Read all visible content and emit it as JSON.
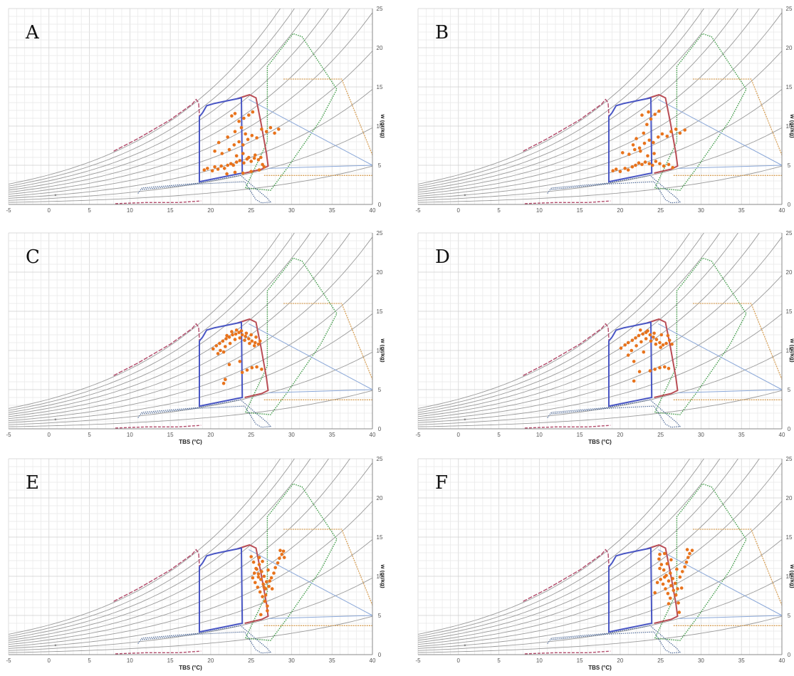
{
  "chart_data": [
    {
      "panel": "A",
      "type": "scatter",
      "xlabel": "",
      "ylabel": "w (gr/kg)",
      "xlim": [
        -5,
        40
      ],
      "ylim": [
        0,
        25
      ],
      "xticks": [
        "-5",
        "0",
        "5",
        "10",
        "15",
        "20",
        "25",
        "30",
        "35",
        "40"
      ],
      "yticks": [
        "0",
        "5",
        "10",
        "15",
        "20",
        "25"
      ],
      "points": [
        [
          19.2,
          4.4
        ],
        [
          19.6,
          4.6
        ],
        [
          20.2,
          4.3
        ],
        [
          20.5,
          4.8
        ],
        [
          20.9,
          4.5
        ],
        [
          21.3,
          4.9
        ],
        [
          21.7,
          4.6
        ],
        [
          22.1,
          5.0
        ],
        [
          22.5,
          5.2
        ],
        [
          22.8,
          5.0
        ],
        [
          23.2,
          5.4
        ],
        [
          23.6,
          5.6
        ],
        [
          24.1,
          5.3
        ],
        [
          24.5,
          5.8
        ],
        [
          25.0,
          5.5
        ],
        [
          25.4,
          5.9
        ],
        [
          25.9,
          5.7
        ],
        [
          26.4,
          5.1
        ],
        [
          20.5,
          6.8
        ],
        [
          21.4,
          6.5
        ],
        [
          22.3,
          7.0
        ],
        [
          22.9,
          7.6
        ],
        [
          23.5,
          8.0
        ],
        [
          24.0,
          7.6
        ],
        [
          24.6,
          8.3
        ],
        [
          25.1,
          8.8
        ],
        [
          25.7,
          8.5
        ],
        [
          24.3,
          9.0
        ],
        [
          21.0,
          7.9
        ],
        [
          22.1,
          8.6
        ],
        [
          23.0,
          9.3
        ],
        [
          23.8,
          9.8
        ],
        [
          23.5,
          10.6
        ],
        [
          24.1,
          11.0
        ],
        [
          24.7,
          11.4
        ],
        [
          25.2,
          11.8
        ],
        [
          22.6,
          11.3
        ],
        [
          23.0,
          11.6
        ],
        [
          26.3,
          9.6
        ],
        [
          26.9,
          9.3
        ],
        [
          27.4,
          9.8
        ],
        [
          27.9,
          9.1
        ],
        [
          28.4,
          9.6
        ],
        [
          23.2,
          6.2
        ],
        [
          24.0,
          6.5
        ],
        [
          24.7,
          6.0
        ],
        [
          25.5,
          6.3
        ],
        [
          26.2,
          6.0
        ],
        [
          22.0,
          3.9
        ],
        [
          23.0,
          4.1
        ],
        [
          24.0,
          4.0
        ],
        [
          25.0,
          4.2
        ],
        [
          26.0,
          4.4
        ],
        [
          26.6,
          4.8
        ]
      ]
    },
    {
      "panel": "B",
      "type": "scatter",
      "xlabel": "",
      "ylabel": "w (gr/kg)",
      "xlim": [
        -5,
        40
      ],
      "ylim": [
        0,
        25
      ],
      "xticks": [
        "-5",
        "0",
        "5",
        "10",
        "15",
        "20",
        "25",
        "30",
        "35",
        "40"
      ],
      "yticks": [
        "0",
        "5",
        "10",
        "15",
        "20",
        "25"
      ],
      "points": [
        [
          19.1,
          4.3
        ],
        [
          19.5,
          4.5
        ],
        [
          20.0,
          4.2
        ],
        [
          20.6,
          4.6
        ],
        [
          21.0,
          4.4
        ],
        [
          21.5,
          4.8
        ],
        [
          21.9,
          5.0
        ],
        [
          22.3,
          5.3
        ],
        [
          22.7,
          5.1
        ],
        [
          23.1,
          5.4
        ],
        [
          23.6,
          5.2
        ],
        [
          24.0,
          5.0
        ],
        [
          24.4,
          5.5
        ],
        [
          24.9,
          5.2
        ],
        [
          25.4,
          4.9
        ],
        [
          26.0,
          5.1
        ],
        [
          26.5,
          4.7
        ],
        [
          20.3,
          6.6
        ],
        [
          21.1,
          6.4
        ],
        [
          21.8,
          7.0
        ],
        [
          22.4,
          7.2
        ],
        [
          23.0,
          7.8
        ],
        [
          23.6,
          8.2
        ],
        [
          24.1,
          7.9
        ],
        [
          24.7,
          8.6
        ],
        [
          25.2,
          9.0
        ],
        [
          25.8,
          8.7
        ],
        [
          26.3,
          9.3
        ],
        [
          26.9,
          9.6
        ],
        [
          27.4,
          9.1
        ],
        [
          28.0,
          9.5
        ],
        [
          22.0,
          8.4
        ],
        [
          22.9,
          9.1
        ],
        [
          23.3,
          10.2
        ],
        [
          23.8,
          10.9
        ],
        [
          24.3,
          11.5
        ],
        [
          24.8,
          11.9
        ],
        [
          22.7,
          11.4
        ],
        [
          23.5,
          11.8
        ],
        [
          21.6,
          7.6
        ],
        [
          22.5,
          6.8
        ],
        [
          23.4,
          6.2
        ],
        [
          24.2,
          6.5
        ]
      ]
    },
    {
      "panel": "C",
      "type": "scatter",
      "xlabel": "TBS (°C)",
      "ylabel": "w (gr/kg)",
      "xlim": [
        -5,
        40
      ],
      "ylim": [
        0,
        25
      ],
      "xticks": [
        "-5",
        "0",
        "5",
        "10",
        "15",
        "20",
        "25",
        "30",
        "35",
        "40"
      ],
      "yticks": [
        "0",
        "5",
        "10",
        "15",
        "20",
        "25"
      ],
      "points": [
        [
          20.3,
          10.2
        ],
        [
          20.7,
          10.6
        ],
        [
          21.1,
          10.9
        ],
        [
          21.5,
          11.2
        ],
        [
          21.9,
          11.5
        ],
        [
          22.3,
          11.7
        ],
        [
          22.7,
          12.0
        ],
        [
          23.1,
          12.1
        ],
        [
          23.5,
          12.3
        ],
        [
          23.9,
          12.0
        ],
        [
          24.3,
          11.8
        ],
        [
          24.7,
          11.5
        ],
        [
          25.1,
          11.2
        ],
        [
          25.5,
          11.0
        ],
        [
          25.9,
          10.8
        ],
        [
          21.2,
          10.0
        ],
        [
          21.8,
          10.5
        ],
        [
          22.4,
          10.9
        ],
        [
          23.0,
          11.4
        ],
        [
          23.6,
          11.6
        ],
        [
          24.2,
          11.3
        ],
        [
          24.8,
          10.9
        ],
        [
          25.4,
          10.6
        ],
        [
          22.0,
          11.9
        ],
        [
          22.6,
          12.4
        ],
        [
          23.2,
          12.6
        ],
        [
          23.8,
          12.5
        ],
        [
          24.4,
          12.2
        ],
        [
          25.0,
          12.0
        ],
        [
          25.6,
          11.7
        ],
        [
          26.1,
          11.2
        ],
        [
          20.9,
          9.6
        ],
        [
          21.6,
          9.8
        ],
        [
          22.3,
          8.2
        ],
        [
          21.8,
          6.3
        ],
        [
          21.6,
          5.8
        ],
        [
          23.9,
          7.2
        ],
        [
          24.5,
          7.5
        ],
        [
          25.1,
          7.8
        ],
        [
          25.7,
          7.9
        ],
        [
          26.3,
          7.6
        ],
        [
          23.6,
          8.6
        ]
      ]
    },
    {
      "panel": "D",
      "type": "scatter",
      "xlabel": "TBS (°C)",
      "ylabel": "w (gr/kg)",
      "xlim": [
        -5,
        40
      ],
      "ylim": [
        0,
        25
      ],
      "xticks": [
        "-5",
        "0",
        "5",
        "10",
        "15",
        "20",
        "25",
        "30",
        "35",
        "40"
      ],
      "yticks": [
        "0",
        "5",
        "10",
        "15",
        "20",
        "25"
      ],
      "points": [
        [
          20.1,
          10.3
        ],
        [
          20.6,
          10.7
        ],
        [
          21.0,
          11.0
        ],
        [
          21.5,
          11.3
        ],
        [
          21.9,
          11.6
        ],
        [
          22.3,
          11.9
        ],
        [
          22.8,
          12.1
        ],
        [
          23.2,
          12.3
        ],
        [
          23.7,
          12.0
        ],
        [
          24.1,
          11.7
        ],
        [
          24.5,
          11.4
        ],
        [
          24.9,
          11.0
        ],
        [
          25.3,
          10.7
        ],
        [
          25.7,
          10.9
        ],
        [
          26.1,
          11.3
        ],
        [
          26.4,
          10.8
        ],
        [
          21.4,
          10.0
        ],
        [
          22.0,
          10.6
        ],
        [
          22.6,
          11.1
        ],
        [
          23.2,
          11.5
        ],
        [
          23.8,
          11.2
        ],
        [
          24.4,
          10.8
        ],
        [
          25.0,
          10.4
        ],
        [
          22.5,
          12.6
        ],
        [
          23.4,
          12.5
        ],
        [
          24.2,
          12.2
        ],
        [
          25.1,
          12.0
        ],
        [
          25.9,
          11.9
        ],
        [
          21.0,
          9.4
        ],
        [
          21.7,
          8.6
        ],
        [
          22.4,
          7.3
        ],
        [
          21.7,
          6.1
        ],
        [
          23.7,
          7.4
        ],
        [
          24.3,
          7.6
        ],
        [
          24.9,
          7.8
        ],
        [
          25.5,
          7.9
        ],
        [
          26.0,
          7.7
        ],
        [
          22.9,
          9.8
        ]
      ]
    },
    {
      "panel": "E",
      "type": "scatter",
      "xlabel": "TBS (°C)",
      "ylabel": "w (gr/kg)",
      "xlim": [
        -5,
        40
      ],
      "ylim": [
        0,
        25
      ],
      "xticks": [
        "-5",
        "0",
        "5",
        "10",
        "15",
        "20",
        "25",
        "30",
        "35",
        "40"
      ],
      "yticks": [
        "0",
        "5",
        "10",
        "15",
        "20",
        "25"
      ],
      "points": [
        [
          25.0,
          12.5
        ],
        [
          25.3,
          11.8
        ],
        [
          25.6,
          11.0
        ],
        [
          25.9,
          10.3
        ],
        [
          26.2,
          9.6
        ],
        [
          26.5,
          9.0
        ],
        [
          26.8,
          8.4
        ],
        [
          25.2,
          9.8
        ],
        [
          25.5,
          9.2
        ],
        [
          25.8,
          8.6
        ],
        [
          26.1,
          8.0
        ],
        [
          26.4,
          7.4
        ],
        [
          26.7,
          6.8
        ],
        [
          27.0,
          6.2
        ],
        [
          25.7,
          10.9
        ],
        [
          26.0,
          11.5
        ],
        [
          26.3,
          10.6
        ],
        [
          26.6,
          10.0
        ],
        [
          26.9,
          9.3
        ],
        [
          27.2,
          8.7
        ],
        [
          27.5,
          9.8
        ],
        [
          27.8,
          10.4
        ],
        [
          28.0,
          11.1
        ],
        [
          28.3,
          11.7
        ],
        [
          28.5,
          12.3
        ],
        [
          28.8,
          12.8
        ],
        [
          29.0,
          13.2
        ],
        [
          28.6,
          13.3
        ],
        [
          29.1,
          12.4
        ],
        [
          27.1,
          10.8
        ],
        [
          26.4,
          11.9
        ],
        [
          26.0,
          12.4
        ],
        [
          25.4,
          10.4
        ],
        [
          26.8,
          7.6
        ],
        [
          27.0,
          5.6
        ],
        [
          26.2,
          5.1
        ],
        [
          27.3,
          9.4
        ],
        [
          26.6,
          8.6
        ],
        [
          25.9,
          9.9
        ],
        [
          27.6,
          8.4
        ]
      ]
    },
    {
      "panel": "F",
      "type": "scatter",
      "xlabel": "TBS (°C)",
      "ylabel": "w (gr/kg)",
      "xlim": [
        -5,
        40
      ],
      "ylim": [
        0,
        25
      ],
      "xticks": [
        "-5",
        "0",
        "5",
        "10",
        "15",
        "20",
        "25",
        "30",
        "35",
        "40"
      ],
      "yticks": [
        "0",
        "5",
        "10",
        "15",
        "20",
        "25"
      ],
      "points": [
        [
          24.8,
          12.2
        ],
        [
          25.1,
          11.5
        ],
        [
          25.4,
          10.8
        ],
        [
          25.7,
          10.1
        ],
        [
          26.0,
          9.4
        ],
        [
          26.3,
          8.8
        ],
        [
          26.6,
          8.2
        ],
        [
          25.0,
          9.6
        ],
        [
          25.3,
          9.0
        ],
        [
          25.6,
          8.4
        ],
        [
          25.9,
          7.8
        ],
        [
          26.2,
          7.2
        ],
        [
          24.6,
          9.2
        ],
        [
          24.3,
          7.9
        ],
        [
          24.9,
          11.0
        ],
        [
          25.8,
          11.6
        ],
        [
          26.2,
          10.4
        ],
        [
          26.5,
          9.7
        ],
        [
          26.8,
          9.1
        ],
        [
          27.1,
          8.4
        ],
        [
          27.4,
          9.9
        ],
        [
          27.7,
          10.6
        ],
        [
          28.0,
          11.2
        ],
        [
          28.2,
          11.8
        ],
        [
          28.4,
          12.4
        ],
        [
          28.6,
          12.9
        ],
        [
          28.9,
          13.3
        ],
        [
          28.3,
          13.4
        ],
        [
          27.0,
          10.9
        ],
        [
          26.3,
          12.1
        ],
        [
          25.5,
          12.9
        ],
        [
          24.9,
          12.8
        ],
        [
          27.2,
          6.6
        ],
        [
          27.3,
          5.4
        ],
        [
          26.0,
          6.5
        ],
        [
          26.9,
          7.6
        ],
        [
          25.5,
          9.9
        ],
        [
          27.6,
          8.5
        ]
      ]
    }
  ]
}
